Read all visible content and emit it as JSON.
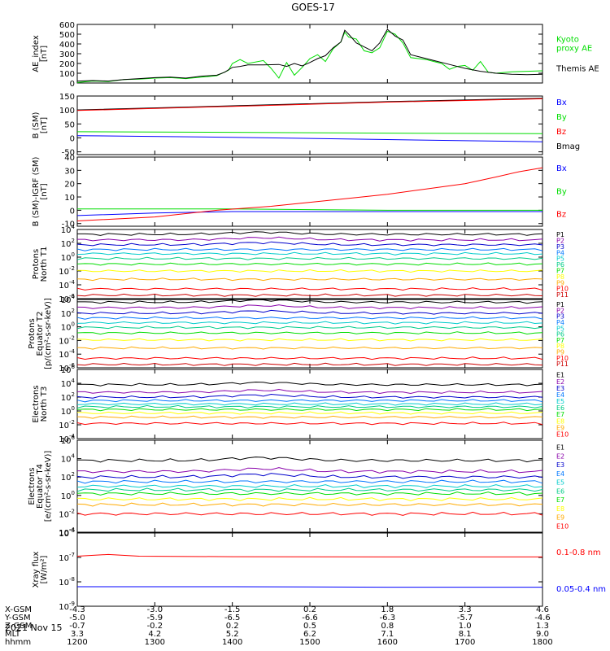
{
  "title": "GOES-17",
  "date": "2021 Nov 15",
  "footer": {
    "row_labels": [
      "X-GSM",
      "Y-GSM",
      "Z-GSM",
      "MLT",
      "hhmm"
    ],
    "columns": [
      {
        "x": "-4.3",
        "y": "-5.0",
        "z": "-0.7",
        "mlt": "3.3",
        "hhmm": "1200"
      },
      {
        "x": "-3.0",
        "y": "-5.9",
        "z": "-0.2",
        "mlt": "4.2",
        "hhmm": "1300"
      },
      {
        "x": "-1.5",
        "y": "-6.5",
        "z": "0.2",
        "mlt": "5.2",
        "hhmm": "1400"
      },
      {
        "x": "0.2",
        "y": "-6.6",
        "z": "0.5",
        "mlt": "6.2",
        "hhmm": "1500"
      },
      {
        "x": "1.8",
        "y": "-6.3",
        "z": "0.8",
        "mlt": "7.1",
        "hhmm": "1600"
      },
      {
        "x": "3.3",
        "y": "-5.7",
        "z": "1.0",
        "mlt": "8.1",
        "hhmm": "1700"
      },
      {
        "x": "4.6",
        "y": "-4.6",
        "z": "1.3",
        "mlt": "9.0",
        "hhmm": "1800"
      }
    ]
  },
  "colors": {
    "green": "#00dd00",
    "black": "#000000",
    "blue": "#0000ff",
    "red": "#ff0000",
    "ch": [
      "#000000",
      "#8800aa",
      "#0000cc",
      "#0077ff",
      "#00cccc",
      "#00cc88",
      "#00dd00",
      "#ffff00",
      "#ffaa00",
      "#ff0000",
      "#cc0000"
    ]
  },
  "chart_data": [
    {
      "type": "line",
      "ylabel": "AE_index\n[nT]",
      "yticks": [
        "0",
        "100",
        "200",
        "300",
        "400",
        "500",
        "600"
      ],
      "ylim": [
        0,
        600
      ],
      "x": [
        1200,
        1800
      ],
      "legend": [
        {
          "name": "Kyoto\nproxy AE",
          "color": "#00dd00"
        },
        {
          "name": "Themis AE",
          "color": "#000000"
        }
      ],
      "series": [
        {
          "name": "Kyoto proxy AE",
          "color": "#00dd00",
          "points": [
            [
              1200,
              5
            ],
            [
              1220,
              20
            ],
            [
              1240,
              15
            ],
            [
              1260,
              35
            ],
            [
              1280,
              40
            ],
            [
              1300,
              50
            ],
            [
              1320,
              55
            ],
            [
              1340,
              45
            ],
            [
              1360,
              60
            ],
            [
              1380,
              75
            ],
            [
              1395,
              130
            ],
            [
              1400,
              200
            ],
            [
              1410,
              240
            ],
            [
              1420,
              200
            ],
            [
              1440,
              230
            ],
            [
              1450,
              150
            ],
            [
              1460,
              50
            ],
            [
              1470,
              210
            ],
            [
              1480,
              80
            ],
            [
              1490,
              160
            ],
            [
              1500,
              250
            ],
            [
              1510,
              290
            ],
            [
              1520,
              220
            ],
            [
              1530,
              350
            ],
            [
              1540,
              420
            ],
            [
              1545,
              520
            ],
            [
              1550,
              470
            ],
            [
              1560,
              450
            ],
            [
              1570,
              330
            ],
            [
              1580,
              310
            ],
            [
              1590,
              360
            ],
            [
              1600,
              530
            ],
            [
              1610,
              500
            ],
            [
              1620,
              410
            ],
            [
              1630,
              260
            ],
            [
              1640,
              250
            ],
            [
              1650,
              240
            ],
            [
              1660,
              220
            ],
            [
              1670,
              200
            ],
            [
              1680,
              140
            ],
            [
              1690,
              170
            ],
            [
              1700,
              180
            ],
            [
              1710,
              130
            ],
            [
              1720,
              220
            ],
            [
              1730,
              110
            ],
            [
              1740,
              100
            ],
            [
              1760,
              115
            ],
            [
              1780,
              120
            ],
            [
              1800,
              125
            ]
          ]
        },
        {
          "name": "Themis AE",
          "color": "#000000",
          "points": [
            [
              1200,
              20
            ],
            [
              1220,
              25
            ],
            [
              1240,
              20
            ],
            [
              1260,
              35
            ],
            [
              1280,
              45
            ],
            [
              1300,
              55
            ],
            [
              1320,
              60
            ],
            [
              1340,
              50
            ],
            [
              1360,
              70
            ],
            [
              1380,
              80
            ],
            [
              1390,
              110
            ],
            [
              1400,
              160
            ],
            [
              1410,
              170
            ],
            [
              1420,
              185
            ],
            [
              1440,
              185
            ],
            [
              1460,
              190
            ],
            [
              1470,
              170
            ],
            [
              1480,
              200
            ],
            [
              1490,
              175
            ],
            [
              1500,
              210
            ],
            [
              1510,
              250
            ],
            [
              1520,
              280
            ],
            [
              1530,
              360
            ],
            [
              1540,
              420
            ],
            [
              1545,
              540
            ],
            [
              1550,
              500
            ],
            [
              1560,
              410
            ],
            [
              1570,
              370
            ],
            [
              1580,
              330
            ],
            [
              1590,
              410
            ],
            [
              1600,
              550
            ],
            [
              1610,
              480
            ],
            [
              1620,
              440
            ],
            [
              1630,
              290
            ],
            [
              1640,
              270
            ],
            [
              1660,
              230
            ],
            [
              1680,
              190
            ],
            [
              1700,
              150
            ],
            [
              1720,
              120
            ],
            [
              1740,
              100
            ],
            [
              1760,
              90
            ],
            [
              1780,
              85
            ],
            [
              1800,
              90
            ]
          ]
        }
      ]
    },
    {
      "type": "line",
      "ylabel": "B (SM)\n[nT]",
      "yticks": [
        "-50",
        "0",
        "50",
        "100",
        "150"
      ],
      "ylim": [
        -60,
        150
      ],
      "x": [
        1200,
        1800
      ],
      "legend": [
        {
          "name": "Bx",
          "color": "#0000ff"
        },
        {
          "name": "By",
          "color": "#00dd00"
        },
        {
          "name": "Bz",
          "color": "#ff0000"
        },
        {
          "name": "Bmag",
          "color": "#000000"
        }
      ],
      "series": [
        {
          "name": "Bmag",
          "color": "#000000",
          "points": [
            [
              1200,
              100
            ],
            [
              1400,
              115
            ],
            [
              1600,
              130
            ],
            [
              1800,
              142
            ]
          ]
        },
        {
          "name": "Bz",
          "color": "#ff0000",
          "points": [
            [
              1200,
              98
            ],
            [
              1400,
              113
            ],
            [
              1600,
              128
            ],
            [
              1800,
              140
            ]
          ]
        },
        {
          "name": "By",
          "color": "#00dd00",
          "points": [
            [
              1200,
              22
            ],
            [
              1400,
              20
            ],
            [
              1600,
              17
            ],
            [
              1800,
              15
            ]
          ]
        },
        {
          "name": "Bx",
          "color": "#0000ff",
          "points": [
            [
              1200,
              8
            ],
            [
              1400,
              2
            ],
            [
              1600,
              -6
            ],
            [
              1800,
              -14
            ]
          ]
        }
      ]
    },
    {
      "type": "line",
      "ylabel": "B (SM)-IGRF (SM)\n[nT]",
      "yticks": [
        "-10",
        "0",
        "10",
        "20",
        "30",
        "40"
      ],
      "ylim": [
        -12,
        40
      ],
      "x": [
        1200,
        1800
      ],
      "legend": [
        {
          "name": "Bx",
          "color": "#0000ff"
        },
        {
          "name": "By",
          "color": "#00dd00"
        },
        {
          "name": "Bz",
          "color": "#ff0000"
        }
      ],
      "series": [
        {
          "name": "By",
          "color": "#00dd00",
          "points": [
            [
              1200,
              1
            ],
            [
              1400,
              1
            ],
            [
              1600,
              0
            ],
            [
              1800,
              0
            ]
          ]
        },
        {
          "name": "Bx",
          "color": "#0000ff",
          "points": [
            [
              1200,
              -4
            ],
            [
              1300,
              -2
            ],
            [
              1400,
              -1
            ],
            [
              1600,
              -1
            ],
            [
              1800,
              -1
            ]
          ]
        },
        {
          "name": "Bz",
          "color": "#ff0000",
          "points": [
            [
              1200,
              -8
            ],
            [
              1300,
              -5
            ],
            [
              1380,
              0
            ],
            [
              1450,
              3
            ],
            [
              1500,
              6
            ],
            [
              1550,
              9
            ],
            [
              1600,
              12
            ],
            [
              1650,
              16
            ],
            [
              1700,
              20
            ],
            [
              1740,
              25
            ],
            [
              1770,
              29
            ],
            [
              1800,
              32
            ]
          ]
        }
      ]
    },
    {
      "type": "line",
      "log": true,
      "ylabel": "Protons\nNorth T1",
      "yticks": [
        "10^-6",
        "10^-4",
        "10^-2",
        "10^0",
        "10^2",
        "10^4"
      ],
      "ylim": [
        -6,
        4
      ],
      "x": [
        1200,
        1800
      ],
      "legend": [
        {
          "name": "P1",
          "color": "#000000"
        },
        {
          "name": "P2",
          "color": "#8800aa"
        },
        {
          "name": "P3",
          "color": "#0000cc"
        },
        {
          "name": "P4",
          "color": "#0077ff"
        },
        {
          "name": "P5",
          "color": "#00cccc"
        },
        {
          "name": "P6",
          "color": "#00cc88"
        },
        {
          "name": "P7",
          "color": "#00dd00"
        },
        {
          "name": "P8",
          "color": "#ffff00"
        },
        {
          "name": "P9",
          "color": "#ffaa00"
        },
        {
          "name": "P10",
          "color": "#ff0000"
        },
        {
          "name": "P11",
          "color": "#cc0000"
        }
      ],
      "levels": [
        3.3,
        2.5,
        1.8,
        1.1,
        0.5,
        -0.2,
        -1.0,
        -2.0,
        -3.2,
        -4.6,
        -5.5
      ]
    },
    {
      "type": "line",
      "log": true,
      "ylabel": "Protons\nEquator T2\n[p/(cm²-s-sr-keV)]",
      "yticks": [
        "10^-6",
        "10^-4",
        "10^-2",
        "10^0",
        "10^2",
        "10^4"
      ],
      "ylim": [
        -6,
        4
      ],
      "x": [
        1200,
        1800
      ],
      "legend": [
        {
          "name": "P1",
          "color": "#000000"
        },
        {
          "name": "P2",
          "color": "#8800aa"
        },
        {
          "name": "P3",
          "color": "#0000cc"
        },
        {
          "name": "P4",
          "color": "#0077ff"
        },
        {
          "name": "P5",
          "color": "#00cccc"
        },
        {
          "name": "P6",
          "color": "#00cc88"
        },
        {
          "name": "P7",
          "color": "#00dd00"
        },
        {
          "name": "P8",
          "color": "#ffff00"
        },
        {
          "name": "P9",
          "color": "#ffaa00"
        },
        {
          "name": "P10",
          "color": "#ff0000"
        },
        {
          "name": "P11",
          "color": "#cc0000"
        }
      ],
      "levels": [
        3.6,
        2.8,
        2.0,
        1.3,
        0.6,
        -0.1,
        -0.9,
        -1.9,
        -3.1,
        -4.6,
        -5.5
      ]
    },
    {
      "type": "line",
      "log": true,
      "ylabel": "Electrons\nNorth T3",
      "yticks": [
        "10^-4",
        "10^-2",
        "10^0",
        "10^2",
        "10^4",
        "10^6"
      ],
      "ylim": [
        -4,
        6
      ],
      "x": [
        1200,
        1800
      ],
      "legend": [
        {
          "name": "E1",
          "color": "#000000"
        },
        {
          "name": "E2",
          "color": "#8800aa"
        },
        {
          "name": "E3",
          "color": "#0000cc"
        },
        {
          "name": "E4",
          "color": "#0077ff"
        },
        {
          "name": "E5",
          "color": "#00cccc"
        },
        {
          "name": "E6",
          "color": "#00cc88"
        },
        {
          "name": "E7",
          "color": "#00dd00"
        },
        {
          "name": "E8",
          "color": "#ffff00"
        },
        {
          "name": "E9",
          "color": "#ffaa00"
        },
        {
          "name": "E10",
          "color": "#ff0000"
        }
      ],
      "levels": [
        3.8,
        2.7,
        2.0,
        1.5,
        1.0,
        0.6,
        0.2,
        -0.3,
        -0.9,
        -1.8
      ]
    },
    {
      "type": "line",
      "log": true,
      "ylabel": "Electrons\nEquator T4\n[e/(cm²-s-sr-keV)]",
      "yticks": [
        "10^-4",
        "10^-2",
        "10^0",
        "10^2",
        "10^4",
        "10^6"
      ],
      "ylim": [
        -4,
        6
      ],
      "x": [
        1200,
        1800
      ],
      "legend": [
        {
          "name": "E1",
          "color": "#000000"
        },
        {
          "name": "E2",
          "color": "#8800aa"
        },
        {
          "name": "E3",
          "color": "#0000cc"
        },
        {
          "name": "E4",
          "color": "#0077ff"
        },
        {
          "name": "E5",
          "color": "#00cccc"
        },
        {
          "name": "E6",
          "color": "#00cc88"
        },
        {
          "name": "E7",
          "color": "#00dd00"
        },
        {
          "name": "E8",
          "color": "#ffff00"
        },
        {
          "name": "E9",
          "color": "#ffaa00"
        },
        {
          "name": "E10",
          "color": "#ff0000"
        }
      ],
      "levels": [
        3.8,
        2.6,
        2.0,
        1.5,
        1.0,
        0.6,
        0.2,
        -0.4,
        -1.0,
        -2.0
      ]
    },
    {
      "type": "line",
      "log": true,
      "ylabel": "Xray flux\n[W/m²]",
      "yticks": [
        "10^-9",
        "10^-8",
        "10^-7",
        "10^-6"
      ],
      "ylim": [
        -9,
        -6
      ],
      "x": [
        1200,
        1800
      ],
      "legend": [
        {
          "name": "0.1-0.8 nm",
          "color": "#ff0000"
        },
        {
          "name": "0.05-0.4 nm",
          "color": "#0000ff"
        }
      ],
      "series": [
        {
          "name": "0.1-0.8 nm",
          "color": "#ff0000",
          "points": [
            [
              1200,
              -6.95
            ],
            [
              1240,
              -6.88
            ],
            [
              1280,
              -6.95
            ],
            [
              1400,
              -6.97
            ],
            [
              1600,
              -6.98
            ],
            [
              1800,
              -6.98
            ]
          ]
        },
        {
          "name": "0.05-0.4 nm",
          "color": "#0000ff",
          "points": [
            [
              1200,
              -8.2
            ],
            [
              1400,
              -8.2
            ],
            [
              1600,
              -8.22
            ],
            [
              1800,
              -8.22
            ]
          ]
        }
      ]
    }
  ]
}
